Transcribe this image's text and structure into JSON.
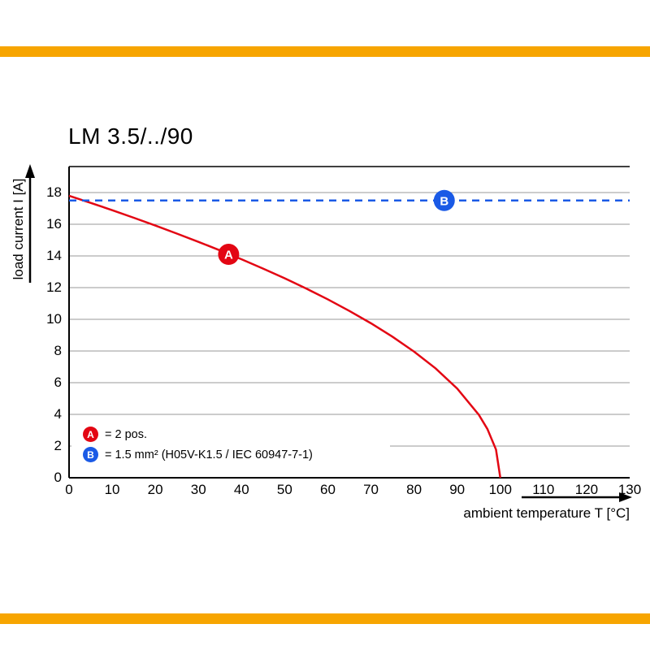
{
  "page": {
    "brand_bar_color": "#F7A500"
  },
  "chart_data": {
    "type": "line",
    "title": "LM 3.5/../90",
    "xlabel": "ambient temperature T [°C]",
    "ylabel": "load current I [A]",
    "xlim": [
      0,
      130
    ],
    "ylim": [
      0,
      18
    ],
    "x_ticks": [
      0,
      10,
      20,
      30,
      40,
      50,
      60,
      70,
      80,
      90,
      100,
      110,
      120,
      130
    ],
    "y_ticks": [
      0,
      2,
      4,
      6,
      8,
      10,
      12,
      14,
      16,
      18
    ],
    "grid": "horizontal",
    "grid_color": "#999999",
    "legend_position": "bottom-left-inside",
    "series": [
      {
        "name": "A",
        "label": "= 2 pos.",
        "color": "#E30613",
        "style": "solid",
        "x": [
          0,
          5,
          10,
          15,
          20,
          25,
          30,
          35,
          40,
          45,
          50,
          55,
          60,
          65,
          70,
          75,
          80,
          85,
          90,
          95,
          97,
          99,
          100
        ],
        "y": [
          17.8,
          17.35,
          16.89,
          16.41,
          15.92,
          15.41,
          14.89,
          14.35,
          13.79,
          13.2,
          12.59,
          11.94,
          11.26,
          10.53,
          9.75,
          8.9,
          7.96,
          6.9,
          5.63,
          3.98,
          3.08,
          1.78,
          0
        ],
        "marker": {
          "x": 37,
          "y": 14.1,
          "label": "A"
        }
      },
      {
        "name": "B",
        "label": "= 1.5 mm² (H05V-K1.5 / IEC 60947-7-1)",
        "color": "#1A5AE6",
        "style": "dashed",
        "x": [
          0,
          130
        ],
        "y": [
          17.5,
          17.5
        ],
        "marker": {
          "x": 87,
          "y": 17.5,
          "label": "B"
        }
      }
    ]
  }
}
